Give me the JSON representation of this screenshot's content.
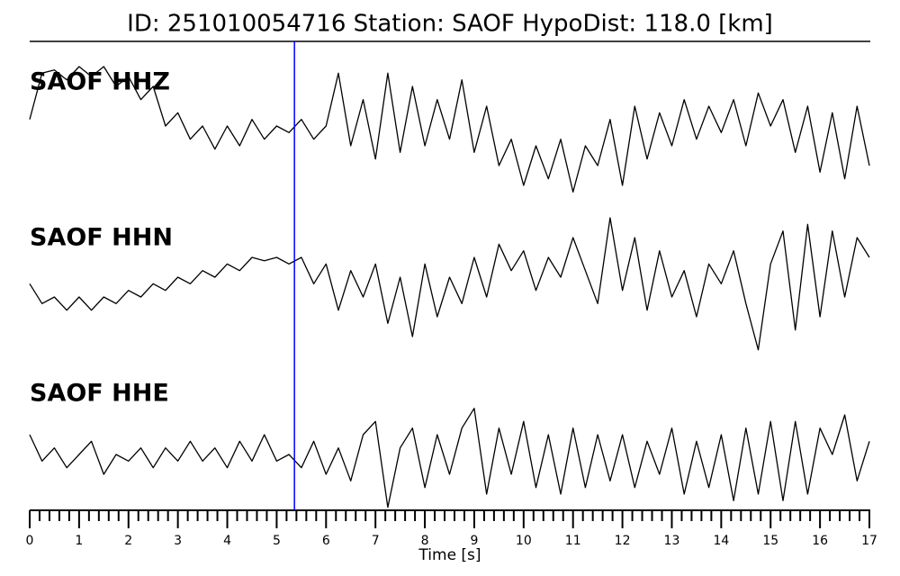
{
  "chart_data": {
    "type": "line",
    "title": "ID: 251010054716   Station: SAOF   HypoDist:   118.0 [km]",
    "xlabel": "Time [s]",
    "xlim": [
      0,
      17
    ],
    "xticks": [
      0,
      1,
      2,
      3,
      4,
      5,
      6,
      7,
      8,
      9,
      10,
      11,
      12,
      13,
      14,
      15,
      16,
      17
    ],
    "xminorticks": [
      0.2,
      0.4,
      0.6,
      0.8,
      1.2,
      1.4,
      1.6,
      1.8,
      2.2,
      2.4,
      2.6,
      2.8,
      3.2,
      3.4,
      3.6,
      3.8,
      4.2,
      4.4,
      4.6,
      4.8,
      5.2,
      5.4,
      5.6,
      5.8,
      6.2,
      6.4,
      6.6,
      6.8,
      7.2,
      7.4,
      7.6,
      7.8,
      8.2,
      8.4,
      8.6,
      8.8,
      9.2,
      9.4,
      9.6,
      9.8,
      10.2,
      10.4,
      10.6,
      10.8,
      11.2,
      11.4,
      11.6,
      11.8,
      12.2,
      12.4,
      12.6,
      12.8,
      13.2,
      13.4,
      13.6,
      13.8,
      14.2,
      14.4,
      14.6,
      14.8,
      15.2,
      15.4,
      15.6,
      15.8,
      16.2,
      16.4,
      16.6,
      16.8
    ],
    "ylim": [
      -1.2,
      1.2
    ],
    "label_color": "#4c9a00",
    "marker": {
      "x": 5.36,
      "color": "#0000ff"
    },
    "x": [
      0,
      0.25,
      0.5,
      0.75,
      1,
      1.25,
      1.5,
      1.75,
      2,
      2.25,
      2.5,
      2.75,
      3,
      3.25,
      3.5,
      3.75,
      4,
      4.25,
      4.5,
      4.75,
      5,
      5.25,
      5.5,
      5.75,
      6,
      6.25,
      6.5,
      6.75,
      7,
      7.25,
      7.5,
      7.75,
      8,
      8.25,
      8.5,
      8.75,
      9,
      9.25,
      9.5,
      9.75,
      10,
      10.25,
      10.5,
      10.75,
      11,
      11.25,
      11.5,
      11.75,
      12,
      12.25,
      12.5,
      12.75,
      13,
      13.25,
      13.5,
      13.75,
      14,
      14.25,
      14.5,
      14.75,
      15,
      15.25,
      15.5,
      15.75,
      16,
      16.25,
      16.5,
      16.75,
      17
    ],
    "series": [
      {
        "name": "SAOF HHZ",
        "color": "#000000",
        "values": [
          0.1,
          0.8,
          0.85,
          0.7,
          0.9,
          0.75,
          0.9,
          0.6,
          0.75,
          0.4,
          0.6,
          0.0,
          0.2,
          -0.2,
          0.0,
          -0.35,
          0.0,
          -0.3,
          0.1,
          -0.2,
          0.0,
          -0.1,
          0.1,
          -0.2,
          0.0,
          0.8,
          -0.3,
          0.4,
          -0.5,
          0.8,
          -0.4,
          0.6,
          -0.3,
          0.4,
          -0.2,
          0.7,
          -0.4,
          0.3,
          -0.6,
          -0.2,
          -0.9,
          -0.3,
          -0.8,
          -0.2,
          -1.0,
          -0.3,
          -0.6,
          0.1,
          -0.9,
          0.3,
          -0.5,
          0.2,
          -0.3,
          0.4,
          -0.2,
          0.3,
          -0.1,
          0.4,
          -0.3,
          0.5,
          0.0,
          0.4,
          -0.4,
          0.3,
          -0.7,
          0.2,
          -0.8,
          0.3,
          -0.6
        ]
      },
      {
        "name": "SAOF HHN",
        "color": "#000000",
        "values": [
          -0.1,
          -0.4,
          -0.3,
          -0.5,
          -0.3,
          -0.5,
          -0.3,
          -0.4,
          -0.2,
          -0.3,
          -0.1,
          -0.2,
          0.0,
          -0.1,
          0.1,
          0.0,
          0.2,
          0.1,
          0.3,
          0.25,
          0.3,
          0.2,
          0.3,
          -0.1,
          0.2,
          -0.5,
          0.1,
          -0.3,
          0.2,
          -0.7,
          0.0,
          -0.9,
          0.2,
          -0.6,
          0.0,
          -0.4,
          0.3,
          -0.3,
          0.5,
          0.1,
          0.4,
          -0.2,
          0.3,
          0.0,
          0.6,
          0.1,
          -0.4,
          0.9,
          -0.2,
          0.6,
          -0.5,
          0.4,
          -0.3,
          0.1,
          -0.6,
          0.2,
          -0.1,
          0.4,
          -0.4,
          -1.1,
          0.2,
          0.7,
          -0.8,
          0.8,
          -0.6,
          0.7,
          -0.3,
          0.6,
          0.3
        ]
      },
      {
        "name": "SAOF HHE",
        "color": "#000000",
        "values": [
          0.3,
          -0.1,
          0.1,
          -0.2,
          0.0,
          0.2,
          -0.3,
          0.0,
          -0.1,
          0.1,
          -0.2,
          0.1,
          -0.1,
          0.2,
          -0.1,
          0.1,
          -0.2,
          0.2,
          -0.1,
          0.3,
          -0.1,
          0.0,
          -0.2,
          0.2,
          -0.3,
          0.1,
          -0.4,
          0.3,
          0.5,
          -0.8,
          0.1,
          0.4,
          -0.5,
          0.3,
          -0.3,
          0.4,
          0.7,
          -0.6,
          0.4,
          -0.3,
          0.5,
          -0.5,
          0.3,
          -0.6,
          0.4,
          -0.5,
          0.3,
          -0.4,
          0.3,
          -0.5,
          0.2,
          -0.3,
          0.4,
          -0.6,
          0.2,
          -0.5,
          0.3,
          -0.7,
          0.4,
          -0.6,
          0.5,
          -0.7,
          0.5,
          -0.6,
          0.4,
          0.0,
          0.6,
          -0.4,
          0.2
        ]
      }
    ]
  }
}
